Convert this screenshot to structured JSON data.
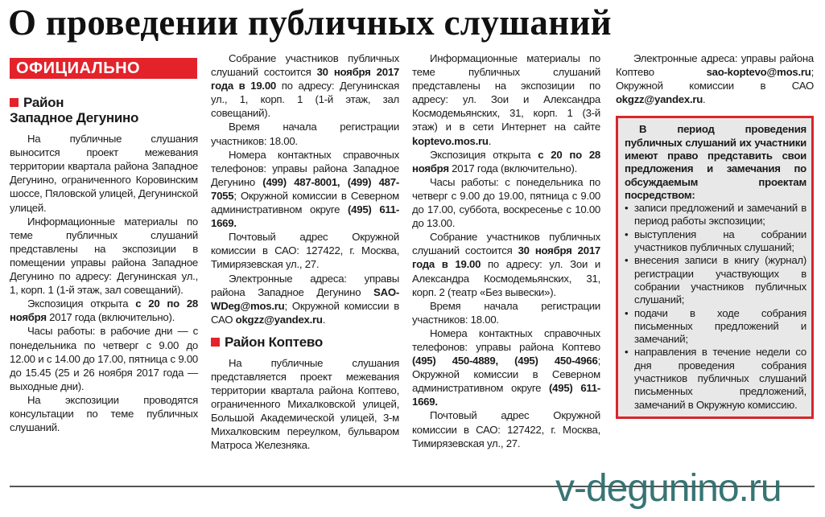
{
  "title": "О проведении публичных слушаний",
  "banner": "ОФИЦИАЛЬНО",
  "watermark": "v-degunino.ru",
  "colors": {
    "accent": "#e3222a",
    "box_bg": "#e8e8e8",
    "watermark": "#2e6e6e"
  },
  "section1": {
    "heading_line1": "Район",
    "heading_line2": "Западное Дегунино",
    "paragraphs": [
      [
        {
          "t": "На публичные слушания выносится проект межевания территории квартала района Западное Дегунино, ограниченного Коровинским шоссе, Пяловской улицей, Дегунинской улицей."
        }
      ],
      [
        {
          "t": "Информационные материалы по теме публичных слушаний представлены на экспозиции в помещении управы района Западное Дегунино по адресу: Дегунинская ул., 1, корп. 1 (1-й этаж, зал совещаний)."
        }
      ],
      [
        {
          "t": "Экспозиция открыта "
        },
        {
          "t": "с 20 по 28 ноября",
          "b": true
        },
        {
          "t": " 2017 года (включительно)."
        }
      ],
      [
        {
          "t": "Часы работы: в рабочие дни — с понедельника по четверг с 9.00 до 12.00 и с 14.00 до 17.00, пятница с 9.00 до 15.45 (25 и 26 ноября 2017 года — выходные дни)."
        }
      ],
      [
        {
          "t": "На экспозиции проводятся консультации по теме публичных слушаний."
        }
      ],
      [
        {
          "t": "Собрание участников публичных слушаний состоится "
        },
        {
          "t": "30 ноября 2017 года в 19.00",
          "b": true
        },
        {
          "t": " по адресу: Дегунинская ул., 1, корп. 1 (1-й этаж, зал совещаний)."
        }
      ],
      [
        {
          "t": "Время начала регистрации участников: 18.00."
        }
      ],
      [
        {
          "t": "Номера контактных справочных телефонов: управы района Западное Дегунино "
        },
        {
          "t": "(499) 487-8001, (499) 487-7055",
          "b": true
        },
        {
          "t": "; Окружной комиссии в Северном административном округе "
        },
        {
          "t": "(495) 611-1669.",
          "b": true
        }
      ],
      [
        {
          "t": "Почтовый адрес Окружной комиссии в САО: 127422, г. Москва, Тимирязевская ул., 27."
        }
      ],
      [
        {
          "t": "Электронные адреса: управы района Западное Дегунино "
        },
        {
          "t": "SAO-WDeg@mos.ru",
          "b": true
        },
        {
          "t": "; Окружной комиссии в САО "
        },
        {
          "t": "okgzz@yandex.ru",
          "b": true
        },
        {
          "t": "."
        }
      ]
    ]
  },
  "section2": {
    "heading": "Район Коптево",
    "paragraphs": [
      [
        {
          "t": "На публичные слушания представляется проект межевания территории квартала района Коптево, ограниченного Михалковской улицей, Большой Академической улицей, 3-м Михалковским переулком, бульваром Матроса Железняка."
        }
      ],
      [
        {
          "t": "Информационные материалы по теме публичных слушаний представлены на экспозиции по адресу: ул. Зои и Александра Космодемьянских, 31, корп. 1 (3-й этаж) и в сети Интернет на сайте "
        },
        {
          "t": "koptevo.mos.ru",
          "b": true
        },
        {
          "t": "."
        }
      ],
      [
        {
          "t": "Экспозиция открыта "
        },
        {
          "t": "с 20 по 28 ноября",
          "b": true
        },
        {
          "t": " 2017 года (включительно)."
        }
      ],
      [
        {
          "t": "Часы работы: с понедельника по четверг с 9.00 до 19.00, пятница с 9.00 до 17.00, суббота, воскресенье с 10.00 до 13.00."
        }
      ],
      [
        {
          "t": "Собрание участников публичных слушаний состоится "
        },
        {
          "t": "30 ноября 2017 года в 19.00",
          "b": true
        },
        {
          "t": " по адресу: ул. Зои и Александра Космодемьянских, 31, корп. 2 (театр «Без вывески»)."
        }
      ],
      [
        {
          "t": "Время начала регистрации участников: 18.00."
        }
      ],
      [
        {
          "t": "Номера контактных справочных телефонов: управы района Коптево "
        },
        {
          "t": "(495) 450-4889, (495) 450-4966",
          "b": true
        },
        {
          "t": "; Окружной комиссии в Северном административном округе "
        },
        {
          "t": "(495) 611-1669.",
          "b": true
        }
      ],
      [
        {
          "t": "Почтовый адрес Окружной комиссии в САО: 127422, г. Москва, Тимирязевская ул., 27."
        }
      ],
      [
        {
          "t": "Электронные адреса: управы района Коптево "
        },
        {
          "t": "sao-koptevo@mos.ru",
          "b": true
        },
        {
          "t": "; Окружной комиссии в САО "
        },
        {
          "t": "okgzz@yandex.ru",
          "b": true
        },
        {
          "t": "."
        }
      ]
    ]
  },
  "box": {
    "lead": "В период проведения публичных слушаний их участники имеют право представить свои предложения и замечания по обсуждаемым проектам посредством:",
    "items": [
      "записи предложений и замечаний в период работы экспозиции;",
      "выступления на собрании участников публичных слушаний;",
      "внесения записи в книгу (журнал) регистрации участвующих в собрании участников публичных слушаний;",
      "подачи в ходе собрания письменных предложений и замечаний;",
      "направления в течение недели со дня проведения собрания участников публичных слушаний письменных предложений, замечаний в Окружную комиссию."
    ]
  }
}
